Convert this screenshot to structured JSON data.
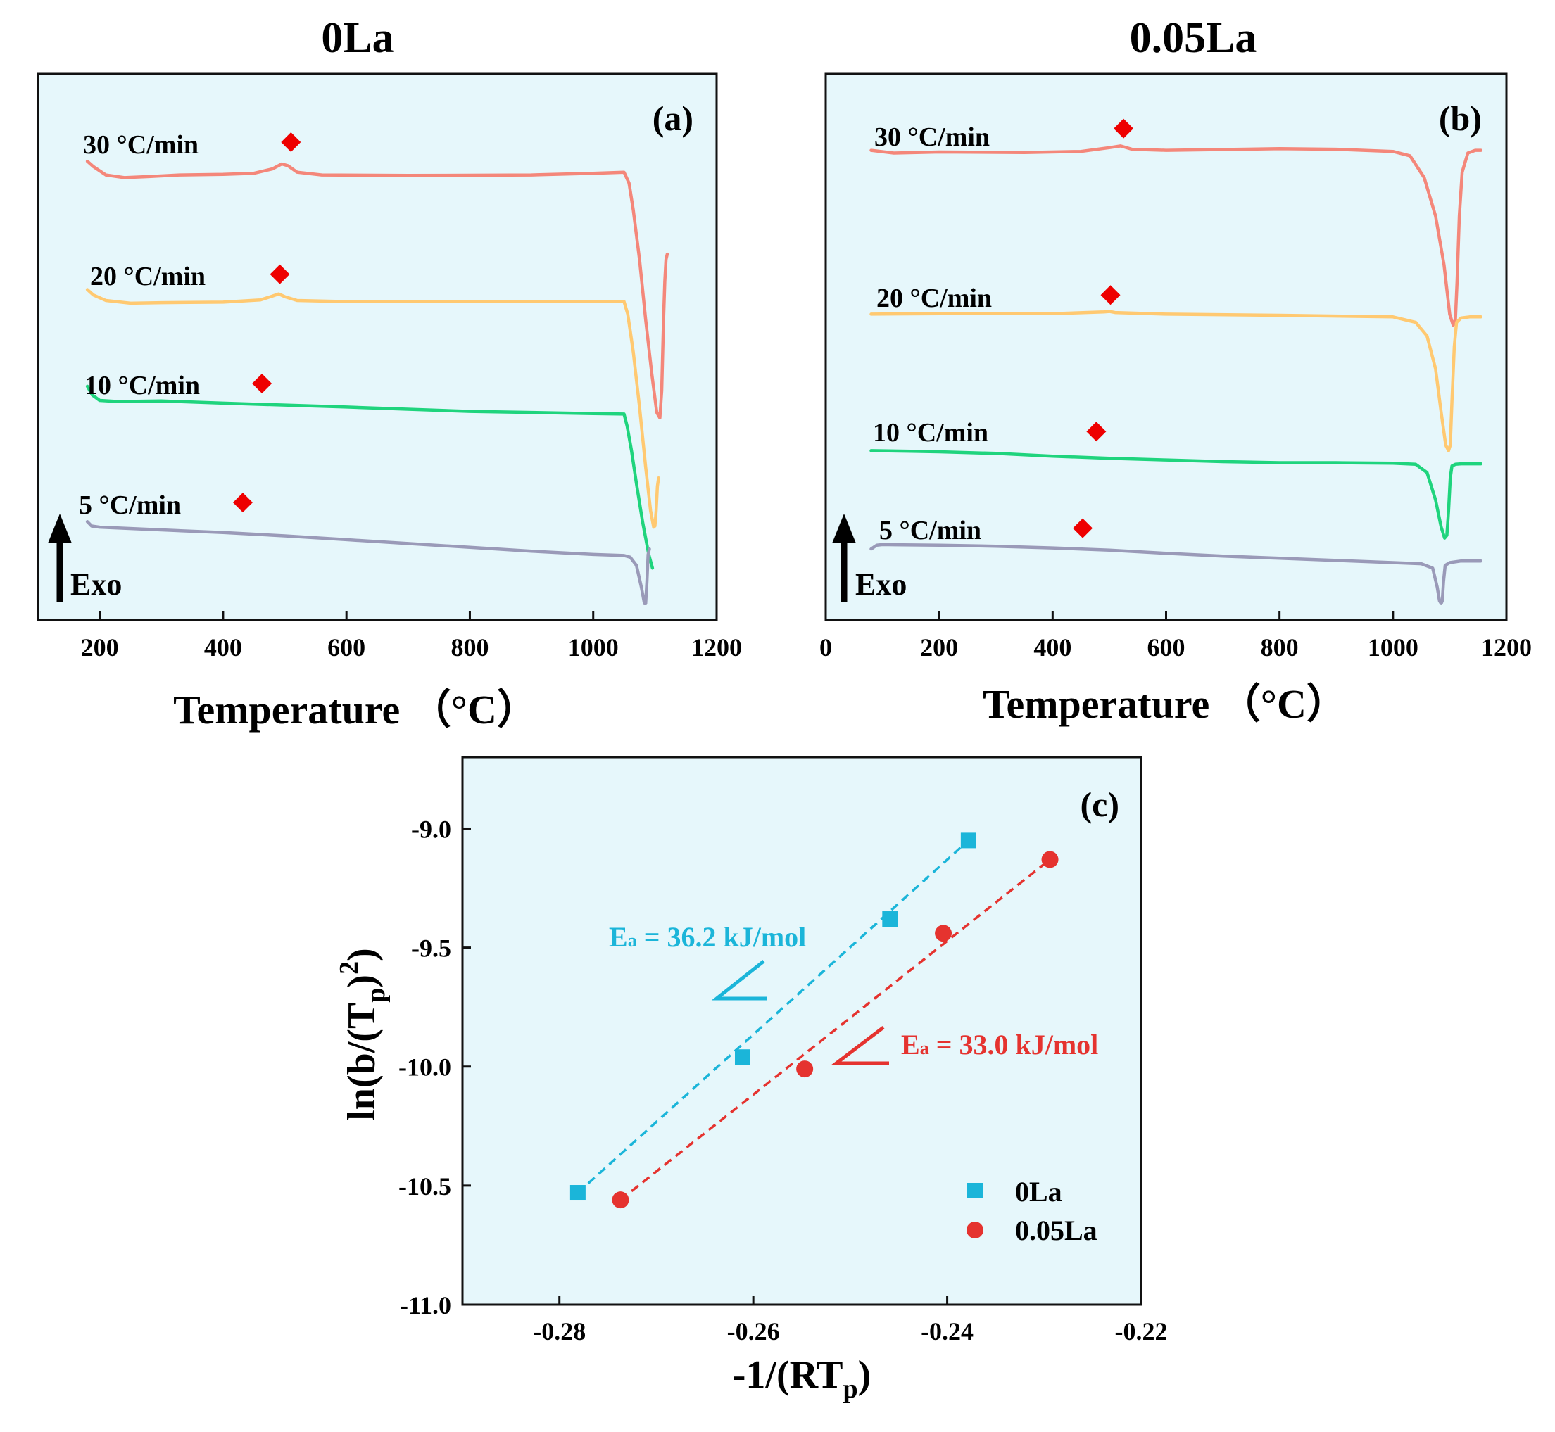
{
  "colors": {
    "panel_bg": "#e6f7fb",
    "frame": "#111111",
    "r30": "#f4877a",
    "r20": "#ffc971",
    "r10": "#1fd47d",
    "r5": "#9a9ab8",
    "marker": "#ee0000",
    "c_0La": "#1bb5d9",
    "c_005La": "#e5332f"
  },
  "chart_data": [
    {
      "id": "a",
      "type": "line",
      "title": "0La",
      "panel_label": "(a)",
      "xlabel": "Temperature （°C）",
      "ylabel": "",
      "xlim": [
        100,
        1200
      ],
      "xticks": [
        "200",
        "400",
        "600",
        "800",
        "1000",
        "1200"
      ],
      "exo_label": "Exo",
      "series": [
        {
          "name": "30 °C/min",
          "color_key": "r30",
          "x": [
            180,
            190,
            210,
            240,
            280,
            330,
            400,
            450,
            480,
            495,
            505,
            520,
            560,
            700,
            900,
            1000,
            1050,
            1058,
            1065,
            1075,
            1085,
            1095,
            1103,
            1108,
            1111,
            1114,
            1116,
            1118,
            1120
          ],
          "y": [
            0.84,
            0.83,
            0.815,
            0.81,
            0.812,
            0.815,
            0.816,
            0.818,
            0.826,
            0.835,
            0.832,
            0.82,
            0.815,
            0.814,
            0.815,
            0.818,
            0.82,
            0.8,
            0.75,
            0.66,
            0.55,
            0.45,
            0.38,
            0.37,
            0.42,
            0.55,
            0.62,
            0.66,
            0.67
          ],
          "peak": {
            "x": 510,
            "y": 0.875
          }
        },
        {
          "name": "20 °C/min",
          "color_key": "r20",
          "x": [
            180,
            190,
            210,
            250,
            300,
            400,
            460,
            480,
            490,
            500,
            520,
            600,
            800,
            1000,
            1050,
            1056,
            1065,
            1075,
            1085,
            1093,
            1098,
            1100,
            1102,
            1104,
            1106
          ],
          "y": [
            0.605,
            0.595,
            0.585,
            0.58,
            0.581,
            0.582,
            0.586,
            0.593,
            0.597,
            0.592,
            0.585,
            0.583,
            0.583,
            0.583,
            0.583,
            0.56,
            0.49,
            0.39,
            0.28,
            0.2,
            0.17,
            0.172,
            0.2,
            0.245,
            0.26
          ],
          "peak": {
            "x": 492,
            "y": 0.633
          }
        },
        {
          "name": "10 °C/min",
          "color_key": "r10",
          "x": [
            180,
            188,
            200,
            230,
            300,
            400,
            600,
            800,
            900,
            1000,
            1050,
            1055,
            1062,
            1070,
            1080,
            1090,
            1096
          ],
          "y": [
            0.428,
            0.412,
            0.402,
            0.4,
            0.401,
            0.397,
            0.39,
            0.382,
            0.38,
            0.378,
            0.377,
            0.355,
            0.31,
            0.25,
            0.18,
            0.12,
            0.095
          ],
          "peak": {
            "x": 463,
            "y": 0.433
          }
        },
        {
          "name": "5 °C/min",
          "color_key": "r5",
          "x": [
            180,
            187,
            200,
            300,
            400,
            500,
            600,
            700,
            800,
            900,
            1000,
            1050,
            1060,
            1070,
            1078,
            1083,
            1085,
            1087,
            1089,
            1091
          ],
          "y": [
            0.18,
            0.172,
            0.17,
            0.165,
            0.16,
            0.154,
            0.147,
            0.14,
            0.133,
            0.126,
            0.12,
            0.118,
            0.115,
            0.1,
            0.06,
            0.03,
            0.03,
            0.07,
            0.12,
            0.13
          ],
          "peak": {
            "x": 432,
            "y": 0.215
          }
        }
      ]
    },
    {
      "id": "b",
      "type": "line",
      "title": "0.05La",
      "panel_label": "(b)",
      "xlabel": "Temperature （°C）",
      "ylabel": "",
      "xlim": [
        0,
        1200
      ],
      "xticks": [
        "0",
        "200",
        "400",
        "600",
        "800",
        "1000",
        "1200"
      ],
      "exo_label": "Exo",
      "series": [
        {
          "name": "30 °C/min",
          "color_key": "r30",
          "x": [
            80,
            120,
            200,
            350,
            450,
            500,
            520,
            540,
            600,
            800,
            900,
            1000,
            1030,
            1055,
            1075,
            1090,
            1100,
            1106,
            1110,
            1113,
            1117,
            1122,
            1132,
            1145,
            1155
          ],
          "y": [
            0.86,
            0.855,
            0.857,
            0.856,
            0.858,
            0.865,
            0.868,
            0.862,
            0.86,
            0.863,
            0.862,
            0.858,
            0.85,
            0.81,
            0.74,
            0.65,
            0.56,
            0.54,
            0.55,
            0.62,
            0.74,
            0.82,
            0.855,
            0.86,
            0.86
          ],
          "peak": {
            "x": 525,
            "y": 0.9
          }
        },
        {
          "name": "20 °C/min",
          "color_key": "r20",
          "x": [
            80,
            200,
            400,
            490,
            500,
            510,
            600,
            800,
            1000,
            1040,
            1060,
            1075,
            1085,
            1093,
            1098,
            1101,
            1104,
            1108,
            1112,
            1120,
            1135,
            1155
          ],
          "y": [
            0.56,
            0.561,
            0.561,
            0.564,
            0.565,
            0.563,
            0.56,
            0.558,
            0.555,
            0.545,
            0.52,
            0.46,
            0.38,
            0.32,
            0.31,
            0.32,
            0.4,
            0.5,
            0.545,
            0.553,
            0.555,
            0.555
          ],
          "peak": {
            "x": 502,
            "y": 0.595
          }
        },
        {
          "name": "10 °C/min",
          "color_key": "r10",
          "x": [
            80,
            150,
            200,
            300,
            400,
            500,
            600,
            700,
            800,
            900,
            1000,
            1040,
            1060,
            1075,
            1085,
            1091,
            1095,
            1098,
            1101,
            1104,
            1110,
            1120,
            1155
          ],
          "y": [
            0.31,
            0.309,
            0.308,
            0.305,
            0.3,
            0.296,
            0.293,
            0.29,
            0.288,
            0.288,
            0.287,
            0.285,
            0.27,
            0.22,
            0.17,
            0.15,
            0.155,
            0.2,
            0.26,
            0.282,
            0.285,
            0.286,
            0.286
          ],
          "peak": {
            "x": 477,
            "y": 0.345
          }
        },
        {
          "name": "5 °C/min",
          "color_key": "r5",
          "x": [
            80,
            90,
            100,
            200,
            300,
            400,
            500,
            600,
            700,
            800,
            900,
            1000,
            1050,
            1070,
            1078,
            1082,
            1085,
            1087,
            1089,
            1092,
            1100,
            1120,
            1155
          ],
          "y": [
            0.13,
            0.137,
            0.138,
            0.137,
            0.135,
            0.132,
            0.128,
            0.122,
            0.117,
            0.113,
            0.109,
            0.105,
            0.103,
            0.095,
            0.06,
            0.035,
            0.03,
            0.035,
            0.07,
            0.1,
            0.105,
            0.108,
            0.108
          ],
          "peak": {
            "x": 453,
            "y": 0.168
          }
        }
      ]
    },
    {
      "id": "c",
      "type": "scatter",
      "title": "",
      "panel_label": "(c)",
      "xlabel": "-1/(RT",
      "xlabel_sub": "p",
      "xlabel_end": ")",
      "ylabel": "ln(b/(T",
      "ylabel_sub": "p",
      "ylabel_mid": ")",
      "ylabel_sup": "2",
      "ylabel_end": ")",
      "xlim": [
        -0.29,
        -0.22
      ],
      "ylim": [
        -11.0,
        -8.7
      ],
      "xticks": [
        "-0.28",
        "-0.26",
        "-0.24",
        "-0.22"
      ],
      "yticks": [
        "-9.0",
        "-9.5",
        "-10.0",
        "-10.5",
        "-11.0"
      ],
      "series": [
        {
          "name": "0La",
          "marker": "square",
          "color_key": "c_0La",
          "x": [
            -0.2781,
            -0.2611,
            -0.2459,
            -0.2378
          ],
          "y": [
            -10.53,
            -9.96,
            -9.38,
            -9.05
          ],
          "fit": {
            "x": [
              -0.2781,
              -0.2378
            ],
            "y": [
              -10.53,
              -9.05
            ]
          },
          "annotation": {
            "text": "E",
            "sub": "a",
            "rest": " = 36.2 kJ/mol"
          }
        },
        {
          "name": "0.05La",
          "marker": "circle",
          "color_key": "c_005La",
          "x": [
            -0.2737,
            -0.2547,
            -0.2404,
            -0.2294
          ],
          "y": [
            -10.56,
            -10.01,
            -9.44,
            -9.13
          ],
          "fit": {
            "x": [
              -0.2737,
              -0.2294
            ],
            "y": [
              -10.56,
              -9.13
            ]
          },
          "annotation": {
            "text": "E",
            "sub": "a",
            "rest": " = 33.0 kJ/mol"
          }
        }
      ]
    }
  ]
}
